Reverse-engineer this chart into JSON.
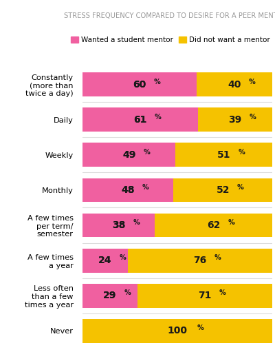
{
  "title": "STRESS FREQUENCY COMPARED TO DESIRE FOR A PEER MENTOR",
  "title_fontsize": 7.2,
  "title_color": "#999999",
  "legend_labels": [
    "Wanted a student mentor",
    "Did not want a mentor"
  ],
  "legend_colors": [
    "#F060A0",
    "#F5C200"
  ],
  "categories": [
    "Constantly\n(more than\ntwice a day)",
    "Daily",
    "Weekly",
    "Monthly",
    "A few times\nper term/\nsemester",
    "A few times\na year",
    "Less often\nthan a few\ntimes a year",
    "Never"
  ],
  "pink_values": [
    60,
    61,
    49,
    48,
    38,
    24,
    29,
    0
  ],
  "gold_values": [
    40,
    39,
    51,
    52,
    62,
    76,
    71,
    100
  ],
  "pink_labels": [
    "60",
    "61",
    "49",
    "48",
    "38",
    "24",
    "29",
    ""
  ],
  "gold_labels": [
    "40",
    "39",
    "51",
    "52",
    "62",
    "76",
    "71",
    "100"
  ],
  "pink_color": "#F060A0",
  "gold_color": "#F5C200",
  "bar_height": 0.68,
  "label_fontsize": 10,
  "pct_fontsize": 7,
  "label_color": "#1a1a1a",
  "category_fontsize": 8.2,
  "bg_color": "#ffffff",
  "divider_color": "#dddddd"
}
